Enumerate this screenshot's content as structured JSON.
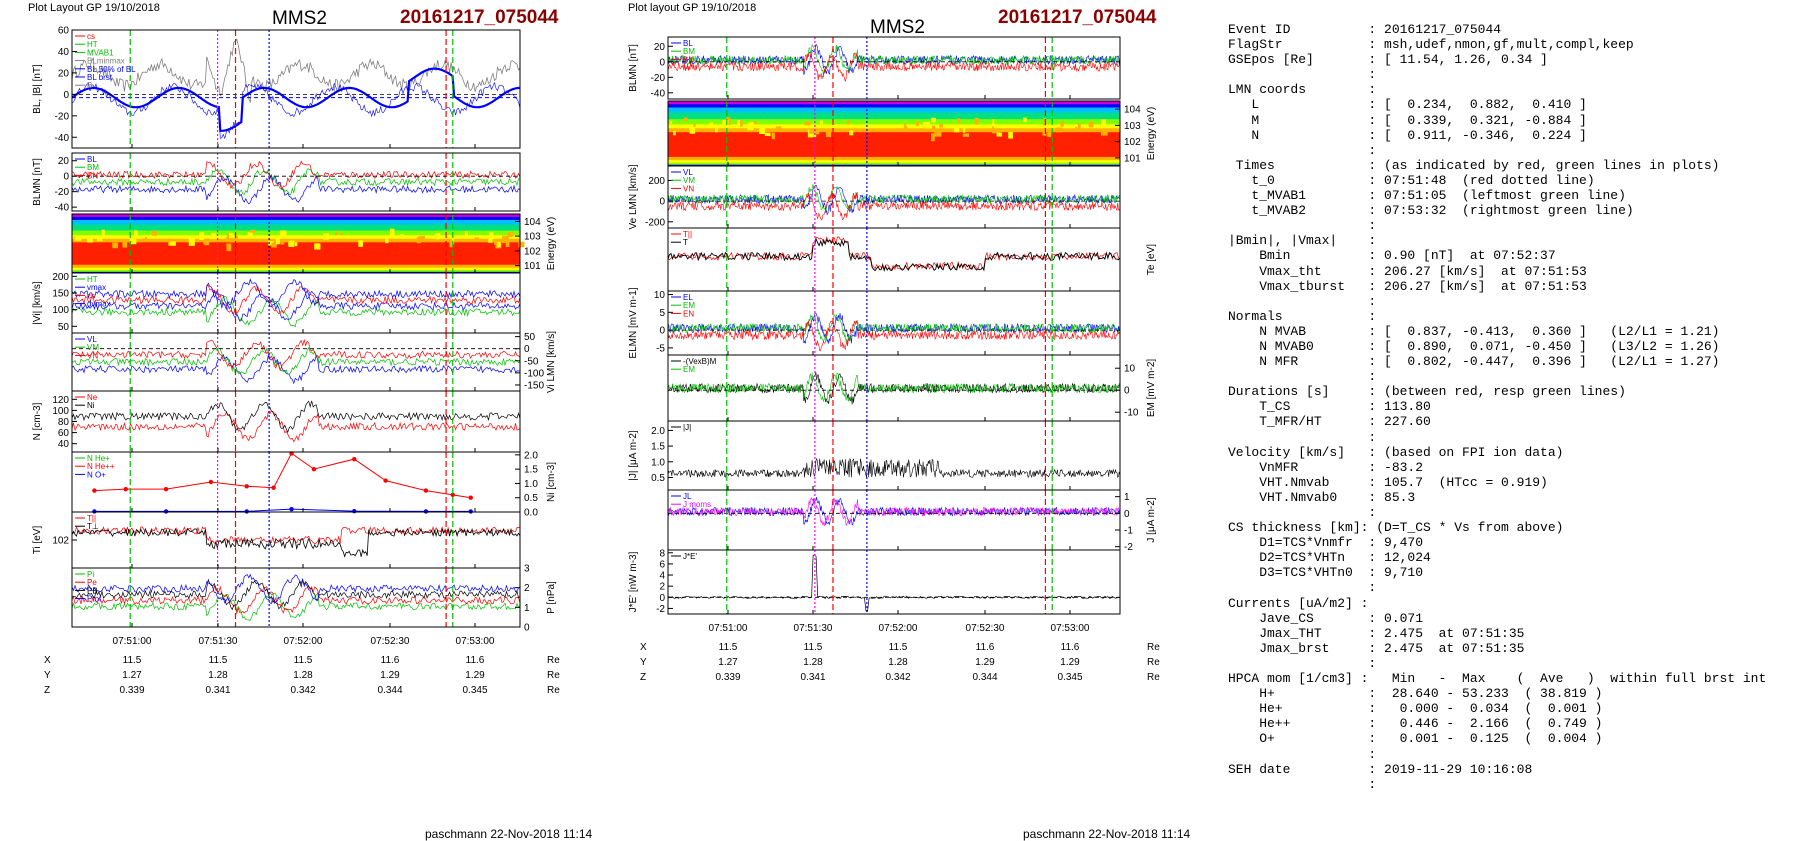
{
  "left_page": {
    "header": "Plot Layout GP 19/10/2018",
    "spacecraft": "MMS2",
    "event": "20161217_075044",
    "signature": "paschmann 22-Nov-2018 11:14"
  },
  "right_page": {
    "header": "Plot layout GP 19/10/2018",
    "spacecraft": "MMS2",
    "event": "20161217_075044",
    "signature": "paschmann 22-Nov-2018 11:14"
  },
  "colors": {
    "red": "#ff0000",
    "green": "#00c000",
    "blue": "#0000ff",
    "black": "#000000",
    "magenta": "#ff00ff",
    "gray": "#808080",
    "dark_red": "#8b0000"
  },
  "chart_data": [
    {
      "type": "line",
      "panel": "left-1",
      "ylabel": "BL, |B| [nT]",
      "yticks": [
        "60",
        "40",
        "20",
        "0",
        "-20",
        "-40"
      ],
      "ylim": [
        -50,
        60
      ],
      "legend": [
        {
          "label": "cs",
          "color": "#ff0000"
        },
        {
          "label": "HT",
          "color": "#00c000"
        },
        {
          "label": "MVAB1",
          "color": "#00c000"
        },
        {
          "label": "BLminmax",
          "color": "#808080"
        },
        {
          "label": "BL 50% of BL",
          "color": "#0000ff"
        },
        {
          "label": "BL brst",
          "color": "#0000ff"
        },
        {
          "label": "B",
          "color": "#808080"
        }
      ],
      "series": [
        {
          "name": "B",
          "color": "#808080"
        },
        {
          "name": "BL",
          "color": "#0000ff"
        }
      ]
    },
    {
      "type": "line",
      "panel": "left-2",
      "ylabel": "BLMN [nT]",
      "yticks": [
        "20",
        "0",
        "-20",
        "-40"
      ],
      "ylim": [
        -45,
        30
      ],
      "legend": [
        {
          "label": "BL",
          "color": "#0000ff"
        },
        {
          "label": "BM",
          "color": "#00c000"
        },
        {
          "label": "BN",
          "color": "#ff0000"
        }
      ]
    },
    {
      "type": "heatmap",
      "panel": "left-3",
      "ylabel": "Energy (eV)",
      "yticks": [
        "10^4",
        "10^3",
        "10^2",
        "10^1"
      ]
    },
    {
      "type": "line",
      "panel": "left-4",
      "ylabel": "|Vi| [km/s]",
      "yticks": [
        "200",
        "150",
        "100",
        "50"
      ],
      "ylim": [
        30,
        210
      ],
      "legend": [
        {
          "label": "HT",
          "color": "#00c000"
        },
        {
          "label": "vmax",
          "color": "#0000ff"
        },
        {
          "label": "cs",
          "color": "#ff0000"
        },
        {
          "label": "dvmax",
          "color": "#0000ff"
        }
      ]
    },
    {
      "type": "line",
      "panel": "left-5",
      "ylabel": "Vi LMN [km/s]",
      "yticks": [
        "50",
        "0",
        "-50",
        "-100",
        "-150"
      ],
      "ylim": [
        -175,
        65
      ],
      "legend": [
        {
          "label": "VL",
          "color": "#0000ff"
        },
        {
          "label": "VM",
          "color": "#00c000"
        },
        {
          "label": "VN",
          "color": "#ff0000"
        }
      ]
    },
    {
      "type": "line",
      "panel": "left-6",
      "ylabel": "N [cm-3]",
      "yticks": [
        "120",
        "100",
        "80",
        "60",
        "40"
      ],
      "ylim": [
        25,
        135
      ],
      "legend": [
        {
          "label": "Ne",
          "color": "#ff0000"
        },
        {
          "label": "Ni",
          "color": "#000000"
        }
      ]
    },
    {
      "type": "line",
      "panel": "left-7",
      "ylabel": "Ni [cm-3]",
      "yticks": [
        "2.0",
        "1.5",
        "1.0",
        "0.5",
        "0.0"
      ],
      "ylim": [
        0,
        2.1
      ],
      "legend": [
        {
          "label": "N He+",
          "color": "#00c000"
        },
        {
          "label": "N He++",
          "color": "#ff0000"
        },
        {
          "label": "N O+",
          "color": "#0000ff"
        }
      ],
      "series": [
        {
          "name": "N He++",
          "color": "#ff0000",
          "x": [
            0.05,
            0.12,
            0.21,
            0.31,
            0.39,
            0.45,
            0.49,
            0.54,
            0.63,
            0.7,
            0.79,
            0.85,
            0.89
          ],
          "values": [
            0.75,
            0.8,
            0.8,
            1.05,
            0.9,
            0.85,
            2.05,
            1.5,
            1.85,
            1.1,
            0.75,
            0.6,
            0.5
          ]
        },
        {
          "name": "N O+",
          "color": "#0000ff",
          "x": [
            0.05,
            0.21,
            0.39,
            0.49,
            0.63,
            0.79,
            0.89
          ],
          "values": [
            0.02,
            0.02,
            0.02,
            0.1,
            0.03,
            0.02,
            0.02
          ]
        }
      ]
    },
    {
      "type": "line",
      "panel": "left-8",
      "ylabel": "Ti [eV]",
      "yticks": [
        "10^2"
      ],
      "legend": [
        {
          "label": "T||",
          "color": "#ff0000"
        },
        {
          "label": "T⊥",
          "color": "#000000"
        }
      ]
    },
    {
      "type": "line",
      "panel": "left-9",
      "ylabel": "P [nPa]",
      "yticks": [
        "3",
        "2",
        "1",
        "0"
      ],
      "ylim": [
        0,
        3
      ],
      "legend": [
        {
          "label": "Pi",
          "color": "#00c000"
        },
        {
          "label": "Pe",
          "color": "#ff0000"
        },
        {
          "label": "PB",
          "color": "#000000"
        },
        {
          "label": "Ptot",
          "color": "#0000ff"
        }
      ]
    },
    {
      "type": "line",
      "panel": "right-1",
      "ylabel": "BLMN [nT]",
      "yticks": [
        "20",
        "0",
        "-20",
        "-40"
      ],
      "ylim": [
        -48,
        32
      ],
      "legend": [
        {
          "label": "BL",
          "color": "#0000ff"
        },
        {
          "label": "BM",
          "color": "#00c000"
        },
        {
          "label": "BN",
          "color": "#ff0000"
        }
      ]
    },
    {
      "type": "heatmap",
      "panel": "right-2",
      "ylabel": "Energy (eV)",
      "yticks": [
        "10^4",
        "10^3",
        "10^2",
        "10^1"
      ]
    },
    {
      "type": "line",
      "panel": "right-3",
      "ylabel": "Ve LMN [km/s]",
      "yticks": [
        "200",
        "0",
        "-200"
      ],
      "ylim": [
        -260,
        340
      ],
      "legend": [
        {
          "label": "VL",
          "color": "#0000ff"
        },
        {
          "label": "VM",
          "color": "#00c000"
        },
        {
          "label": "VN",
          "color": "#ff0000"
        }
      ]
    },
    {
      "type": "line",
      "panel": "right-4",
      "ylabel": "Te [eV]",
      "legend": [
        {
          "label": "T||",
          "color": "#ff0000"
        },
        {
          "label": "T",
          "color": "#000000"
        }
      ]
    },
    {
      "type": "line",
      "panel": "right-5",
      "ylabel": "ELMN [mV m-1]",
      "yticks": [
        "10",
        "5",
        "0",
        "-5"
      ],
      "ylim": [
        -7,
        11
      ],
      "legend": [
        {
          "label": "EL",
          "color": "#0000ff"
        },
        {
          "label": "EM",
          "color": "#00c000"
        },
        {
          "label": "EN",
          "color": "#ff0000"
        }
      ]
    },
    {
      "type": "line",
      "panel": "right-6",
      "ylabel": "EM [mV m-2]",
      "yticks": [
        "10",
        "0",
        "-10"
      ],
      "ylim": [
        -14,
        16
      ],
      "legend": [
        {
          "label": "-(VexB)M",
          "color": "#000000"
        },
        {
          "label": "EM",
          "color": "#00c000"
        }
      ]
    },
    {
      "type": "line",
      "panel": "right-7",
      "ylabel": "|J| [μA m-2]",
      "yticks": [
        "2.0",
        "1.5",
        "1.0",
        "0.5"
      ],
      "ylim": [
        0.1,
        2.3
      ],
      "legend": [
        {
          "label": "|J|",
          "color": "#000000"
        }
      ]
    },
    {
      "type": "line",
      "panel": "right-8",
      "ylabel": "J [μA m-2]",
      "yticks": [
        "1",
        "0",
        "-1",
        "-2"
      ],
      "ylim": [
        -2.2,
        1.4
      ],
      "legend": [
        {
          "label": "JL",
          "color": "#0000ff"
        },
        {
          "label": "J moms",
          "color": "#ff00ff"
        }
      ]
    },
    {
      "type": "line",
      "panel": "right-9",
      "ylabel": "J*E' [nW m-3]",
      "yticks": [
        "8",
        "6",
        "4",
        "2",
        "0",
        "-2"
      ],
      "ylim": [
        -3,
        8.5
      ],
      "legend": [
        {
          "label": "J*E'",
          "color": "#000000"
        }
      ]
    }
  ],
  "time_axis": {
    "ticks": [
      "07:51:00",
      "07:51:30",
      "07:52:00",
      "07:52:30",
      "07:53:00"
    ],
    "rows": [
      {
        "label": "X",
        "values": [
          "11.5",
          "11.5",
          "11.5",
          "11.6",
          "11.6"
        ],
        "unit": "Re"
      },
      {
        "label": "Y",
        "values": [
          "1.27",
          "1.28",
          "1.28",
          "1.29",
          "1.29"
        ],
        "unit": "Re"
      },
      {
        "label": "Z",
        "values": [
          "0.339",
          "0.341",
          "0.342",
          "0.344",
          "0.345"
        ],
        "unit": "Re"
      }
    ]
  },
  "summary": [
    "Event ID          : 20161217_075044",
    "FlagStr           : msh,udef,nmon,gf,mult,compl,keep",
    "GSEpos [Re]       : [ 11.54, 1.26, 0.34 ]",
    "                  :",
    "LMN coords        :",
    "   L              : [  0.234,  0.882,  0.410 ]",
    "   M              : [  0.339,  0.321, -0.884 ]",
    "   N              : [  0.911, -0.346,  0.224 ]",
    "                  :",
    " Times            : (as indicated by red, green lines in plots)",
    "   t_0            : 07:51:48  (red dotted line)",
    "   t_MVAB1        : 07:51:05  (leftmost green line)",
    "   t_MVAB2        : 07:53:32  (rightmost green line)",
    "                  :",
    "|Bmin|, |Vmax|    :",
    "    Bmin          : 0.90 [nT]  at 07:52:37",
    "    Vmax_tht      : 206.27 [km/s]  at 07:51:53",
    "    Vmax_tburst   : 206.27 [km/s]  at 07:51:53",
    "                  :",
    "Normals           :",
    "    N MVAB        : [  0.837, -0.413,  0.360 ]   (L2/L1 = 1.21)",
    "    N MVAB0       : [  0.890,  0.071, -0.450 ]   (L3/L2 = 1.26)",
    "    N MFR         : [  0.802, -0.447,  0.396 ]   (L2/L1 = 1.27)",
    "                  :",
    "Durations [s]     : (between red, resp green lines)",
    "    T_CS          : 113.80",
    "    T_MFR/HT      : 227.60",
    "                  :",
    "Velocity [km/s]   : (based on FPI ion data)",
    "    VnMFR         : -83.2",
    "    VHT.Nmvab     : 105.7  (HTcc = 0.919)",
    "    VHT.Nmvab0    : 85.3",
    "                  :",
    "CS thickness [km]: (D=T_CS * Vs from above)",
    "    D1=TCS*Vnmfr  : 9,470",
    "    D2=TCS*VHTn   : 12,024",
    "    D3=TCS*VHTn0  : 9,710",
    "                  :",
    "Currents [uA/m2] :",
    "    Jave_CS       : 0.071",
    "    Jmax_THT      : 2.475  at 07:51:35",
    "    Jmax_brst     : 2.475  at 07:51:35",
    "                  :",
    "HPCA mom [1/cm3] :   Min   -  Max    (  Ave   )  within full brst int",
    "    H+            :  28.640 - 53.233  ( 38.819 )",
    "    He+           :   0.000 -  0.034  (  0.001 )",
    "    He++          :   0.446 -  2.166  (  0.749 )",
    "    O+            :   0.001 -  0.125  (  0.004 )",
    "                  :",
    "SEH date          : 2019-11-29 10:16:08",
    "                  :"
  ]
}
